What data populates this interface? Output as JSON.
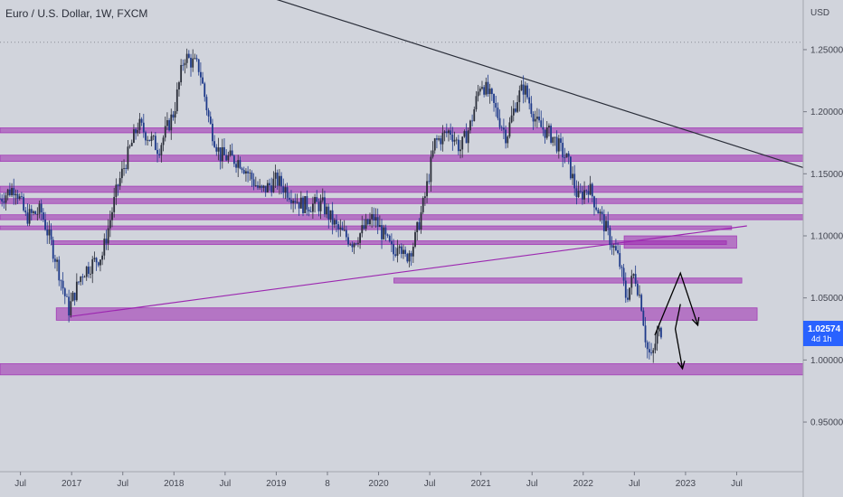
{
  "header": {
    "title": "Euro / U.S. Dollar, 1W, FXCM",
    "currency": "USD"
  },
  "colors": {
    "background": "#d1d4dc",
    "zone": "#9c27b0",
    "candle_up": "#2a2e39",
    "candle_down": "#1e3a8a",
    "trendline": "#2a2e39",
    "support_line": "#9c27b0",
    "price_tag": "#2962ff"
  },
  "last_price": {
    "value": 1.02574,
    "label": "1.02574",
    "countdown": "4d 1h"
  },
  "chart_data": {
    "type": "candlestick",
    "title": "Euro / U.S. Dollar, 1W, FXCM",
    "y_axis": {
      "unit": "USD",
      "range": [
        0.91,
        1.29
      ],
      "ticks": [
        {
          "value": 1.25,
          "label": "1.25000"
        },
        {
          "value": 1.2,
          "label": "1.20000"
        },
        {
          "value": 1.15,
          "label": "1.15000"
        },
        {
          "value": 1.1,
          "label": "1.10000"
        },
        {
          "value": 1.05,
          "label": "1.05000"
        },
        {
          "value": 1.0,
          "label": "1.00000"
        },
        {
          "value": 0.95,
          "label": "0.95000"
        }
      ]
    },
    "x_axis": {
      "range": [
        2016.3,
        2024.15
      ],
      "ticks": [
        {
          "t": 2016.5,
          "label": "Jul"
        },
        {
          "t": 2017.0,
          "label": "2017"
        },
        {
          "t": 2017.5,
          "label": "Jul"
        },
        {
          "t": 2018.0,
          "label": "2018"
        },
        {
          "t": 2018.5,
          "label": "Jul"
        },
        {
          "t": 2019.0,
          "label": "2019"
        },
        {
          "t": 2019.5,
          "label": "8"
        },
        {
          "t": 2020.0,
          "label": "2020"
        },
        {
          "t": 2020.5,
          "label": "Jul"
        },
        {
          "t": 2021.0,
          "label": "2021"
        },
        {
          "t": 2021.5,
          "label": "Jul"
        },
        {
          "t": 2022.0,
          "label": "2022"
        },
        {
          "t": 2022.5,
          "label": "Jul"
        },
        {
          "t": 2023.0,
          "label": "2023"
        },
        {
          "t": 2023.5,
          "label": "Jul"
        }
      ]
    },
    "price_path": [
      {
        "t": 2016.3,
        "p": 1.13
      },
      {
        "t": 2016.45,
        "p": 1.14
      },
      {
        "t": 2016.55,
        "p": 1.115
      },
      {
        "t": 2016.7,
        "p": 1.12
      },
      {
        "t": 2016.85,
        "p": 1.08
      },
      {
        "t": 2016.97,
        "p": 1.04
      },
      {
        "t": 2017.1,
        "p": 1.07
      },
      {
        "t": 2017.3,
        "p": 1.085
      },
      {
        "t": 2017.45,
        "p": 1.14
      },
      {
        "t": 2017.65,
        "p": 1.19
      },
      {
        "t": 2017.85,
        "p": 1.17
      },
      {
        "t": 2018.0,
        "p": 1.2
      },
      {
        "t": 2018.1,
        "p": 1.245
      },
      {
        "t": 2018.25,
        "p": 1.235
      },
      {
        "t": 2018.35,
        "p": 1.19
      },
      {
        "t": 2018.45,
        "p": 1.165
      },
      {
        "t": 2018.65,
        "p": 1.16
      },
      {
        "t": 2018.85,
        "p": 1.135
      },
      {
        "t": 2019.0,
        "p": 1.145
      },
      {
        "t": 2019.25,
        "p": 1.125
      },
      {
        "t": 2019.45,
        "p": 1.125
      },
      {
        "t": 2019.6,
        "p": 1.105
      },
      {
        "t": 2019.75,
        "p": 1.095
      },
      {
        "t": 2019.95,
        "p": 1.115
      },
      {
        "t": 2020.05,
        "p": 1.1
      },
      {
        "t": 2020.15,
        "p": 1.085
      },
      {
        "t": 2020.2,
        "p": 1.1
      },
      {
        "t": 2020.25,
        "p": 1.08
      },
      {
        "t": 2020.35,
        "p": 1.095
      },
      {
        "t": 2020.45,
        "p": 1.13
      },
      {
        "t": 2020.55,
        "p": 1.175
      },
      {
        "t": 2020.7,
        "p": 1.185
      },
      {
        "t": 2020.8,
        "p": 1.17
      },
      {
        "t": 2020.9,
        "p": 1.19
      },
      {
        "t": 2021.0,
        "p": 1.225
      },
      {
        "t": 2021.1,
        "p": 1.21
      },
      {
        "t": 2021.25,
        "p": 1.18
      },
      {
        "t": 2021.35,
        "p": 1.21
      },
      {
        "t": 2021.42,
        "p": 1.22
      },
      {
        "t": 2021.55,
        "p": 1.19
      },
      {
        "t": 2021.7,
        "p": 1.18
      },
      {
        "t": 2021.85,
        "p": 1.16
      },
      {
        "t": 2021.95,
        "p": 1.13
      },
      {
        "t": 2022.05,
        "p": 1.14
      },
      {
        "t": 2022.15,
        "p": 1.12
      },
      {
        "t": 2022.25,
        "p": 1.1
      },
      {
        "t": 2022.35,
        "p": 1.08
      },
      {
        "t": 2022.42,
        "p": 1.05
      },
      {
        "t": 2022.5,
        "p": 1.07
      },
      {
        "t": 2022.57,
        "p": 1.045
      },
      {
        "t": 2022.62,
        "p": 1.01
      },
      {
        "t": 2022.67,
        "p": 1.0
      },
      {
        "t": 2022.72,
        "p": 1.02
      },
      {
        "t": 2022.78,
        "p": 1.026
      }
    ],
    "horizontal_zones": [
      {
        "from": 2016.3,
        "to": 2024.15,
        "low": 1.183,
        "high": 1.187
      },
      {
        "from": 2016.3,
        "to": 2024.15,
        "low": 1.16,
        "high": 1.165
      },
      {
        "from": 2016.3,
        "to": 2024.15,
        "low": 1.135,
        "high": 1.14
      },
      {
        "from": 2016.3,
        "to": 2024.15,
        "low": 1.126,
        "high": 1.13
      },
      {
        "from": 2016.3,
        "to": 2024.15,
        "low": 1.113,
        "high": 1.117
      },
      {
        "from": 2016.3,
        "to": 2023.45,
        "low": 1.105,
        "high": 1.108
      },
      {
        "from": 2016.8,
        "to": 2023.4,
        "low": 1.093,
        "high": 1.096
      },
      {
        "from": 2022.4,
        "to": 2023.5,
        "low": 1.09,
        "high": 1.1
      },
      {
        "from": 2020.15,
        "to": 2023.55,
        "low": 1.062,
        "high": 1.066
      },
      {
        "from": 2016.85,
        "to": 2023.7,
        "low": 1.032,
        "high": 1.042
      },
      {
        "from": 2016.3,
        "to": 2024.15,
        "low": 0.988,
        "high": 0.997
      }
    ],
    "trendlines": [
      {
        "from": {
          "t": 2018.45,
          "p": 1.305
        },
        "to": {
          "t": 2024.15,
          "p": 1.155
        },
        "color": "#2a2e39"
      },
      {
        "from": {
          "t": 2016.98,
          "p": 1.035
        },
        "to": {
          "t": 2023.6,
          "p": 1.108
        },
        "color": "#9c27b0"
      }
    ],
    "projection_arrows": [
      {
        "points": [
          {
            "t": 2022.7,
            "p": 1.02
          },
          {
            "t": 2022.95,
            "p": 1.07
          },
          {
            "t": 2023.12,
            "p": 1.028
          }
        ]
      },
      {
        "points": [
          {
            "t": 2022.95,
            "p": 1.045
          },
          {
            "t": 2022.9,
            "p": 1.025
          },
          {
            "t": 2022.97,
            "p": 0.993
          }
        ]
      }
    ],
    "dotted_reference": {
      "value": 1.256
    }
  }
}
